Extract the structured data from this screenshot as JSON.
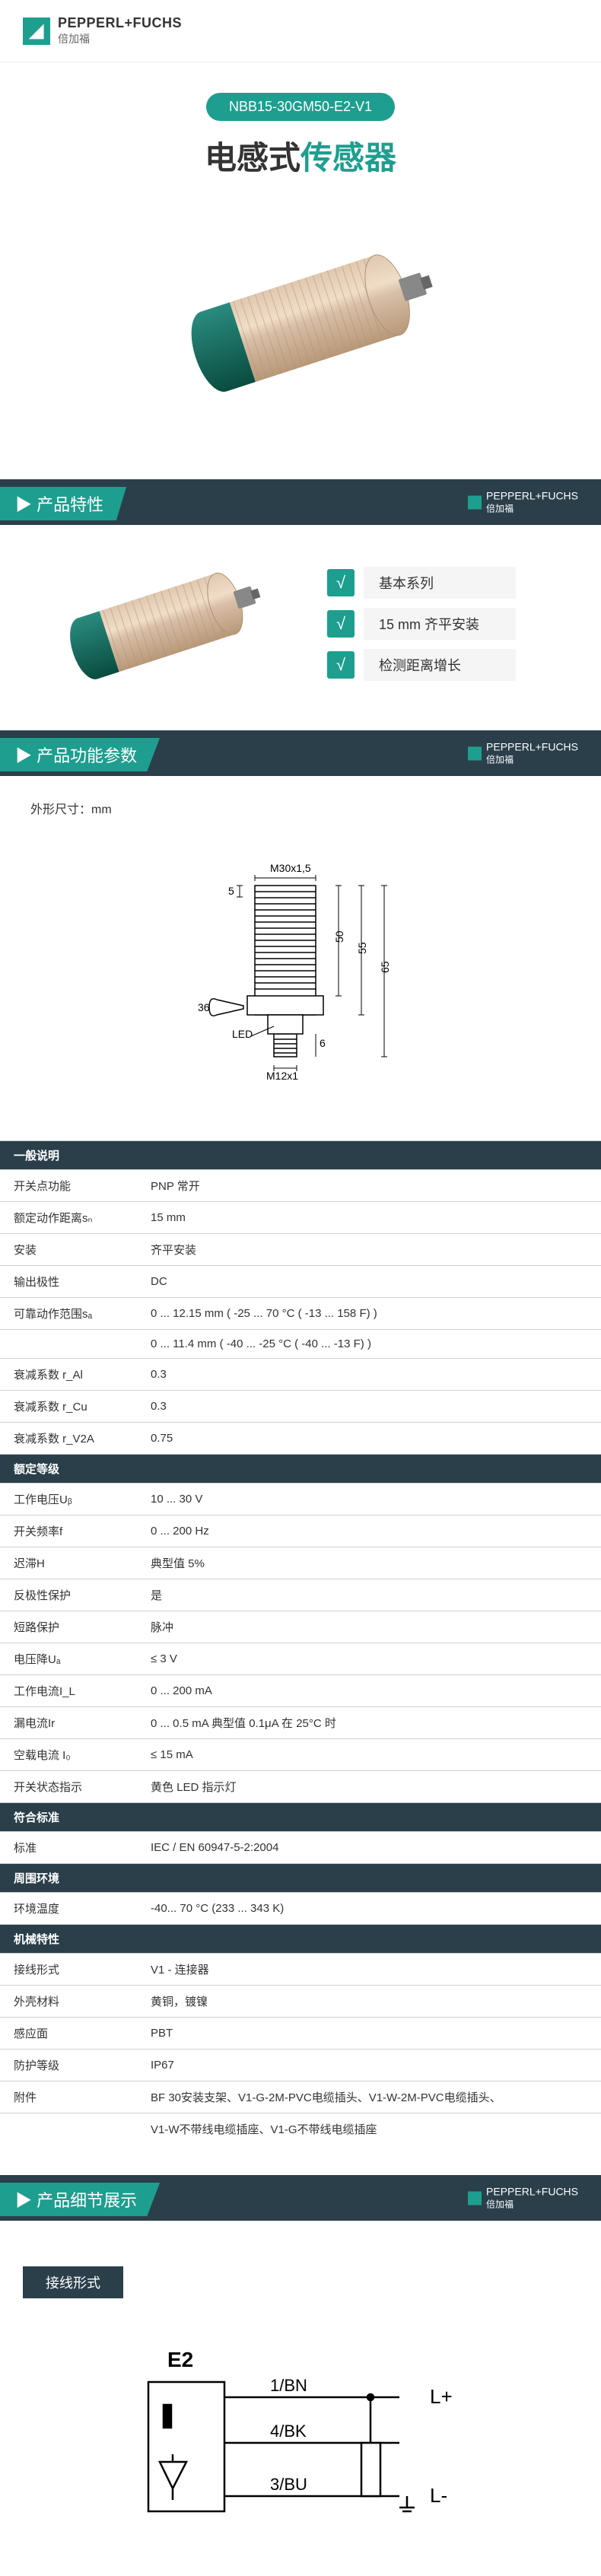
{
  "brand": {
    "en": "PEPPERL+FUCHS",
    "cn": "倍加福"
  },
  "model": "NBB15-30GM50-E2-V1",
  "title_a": "电感式",
  "title_b": "传感器",
  "sections": {
    "features": "产品特性",
    "params": "产品功能参数",
    "details": "产品细节展示"
  },
  "features": [
    "基本系列",
    "15 mm 齐平安装",
    "检测距离增长"
  ],
  "dim_label": "外形尺寸：mm",
  "dim": {
    "thread_top": "M30x1,5",
    "thread_bottom": "M12x1",
    "h50": "50",
    "h55": "55",
    "h65": "65",
    "h5": "5",
    "h6": "6",
    "wrench": "36",
    "led": "LED"
  },
  "spec": {
    "groups": [
      {
        "name": "一般说明",
        "rows": [
          {
            "label": "开关点功能",
            "val": "PNP        常开"
          },
          {
            "label": "额定动作距离sₙ",
            "val": "15 mm"
          },
          {
            "label": "安装",
            "val": "齐平安装"
          },
          {
            "label": "输出极性",
            "val": "DC"
          },
          {
            "label": "可靠动作范围sₐ",
            "val": "0 ... 12.15 mm ( -25 ... 70 °C ( -13 ... 158 F) )"
          },
          {
            "label": "",
            "val": "0 ... 11.4 mm ( -40 ... -25 °C ( -40 ... -13 F) )"
          },
          {
            "label": "衰减系数 r_Al",
            "val": "0.3"
          },
          {
            "label": "衰减系数 r_Cu",
            "val": "0.3"
          },
          {
            "label": "衰减系数 r_V2A",
            "val": "0.75"
          }
        ]
      },
      {
        "name": "额定等级",
        "rows": [
          {
            "label": "工作电压Uᵦ",
            "val": "10 ... 30 V"
          },
          {
            "label": "开关频率f",
            "val": "0 ... 200 Hz"
          },
          {
            "label": "迟滞H",
            "val": "典型值 5%"
          },
          {
            "label": "反极性保护",
            "val": "是"
          },
          {
            "label": "短路保护",
            "val": "脉冲"
          },
          {
            "label": "电压降Uₐ",
            "val": "≤ 3 V"
          },
          {
            "label": "工作电流I_L",
            "val": "0 ... 200 mA"
          },
          {
            "label": "漏电流Ir",
            "val": "0 ... 0.5 mA 典型值 0.1μA 在 25°C 时"
          },
          {
            "label": "空载电流 I₀",
            "val": "≤ 15 mA"
          },
          {
            "label": "开关状态指示",
            "val": "黄色 LED 指示灯"
          }
        ]
      },
      {
        "name": "符合标准",
        "rows": [
          {
            "label": "标准",
            "val": "IEC / EN 60947-5-2:2004"
          }
        ]
      },
      {
        "name": "周围环境",
        "rows": [
          {
            "label": "环境温度",
            "val": "-40... 70 °C (233 ... 343 K)"
          }
        ]
      },
      {
        "name": "机械特性",
        "rows": [
          {
            "label": "接线形式",
            "val": "V1 - 连接器"
          },
          {
            "label": "外壳材料",
            "val": "黄铜，镀镍"
          },
          {
            "label": "感应面",
            "val": "PBT"
          },
          {
            "label": "防护等级",
            "val": "IP67"
          }
        ]
      },
      {
        "name": "",
        "rows": [
          {
            "label": "附件",
            "val": "BF 30安装支架、V1-G-2M-PVC电缆插头、V1-W-2M-PVC电缆插头、"
          },
          {
            "label": "",
            "val": "V1-W不带线电缆插座、V1-G不带线电缆插座"
          }
        ]
      }
    ]
  },
  "wiring_label": "接线形式",
  "wiring": {
    "code": "E2",
    "pin1": "1/BN",
    "pin4": "4/BK",
    "pin3": "3/BU",
    "lp": "L+",
    "lm": "L-"
  },
  "colors": {
    "primary": "#1e9e8f",
    "dark": "#2a3f4a",
    "sensor_body": "#c9a890",
    "sensor_cap": "#1a6b5f"
  }
}
